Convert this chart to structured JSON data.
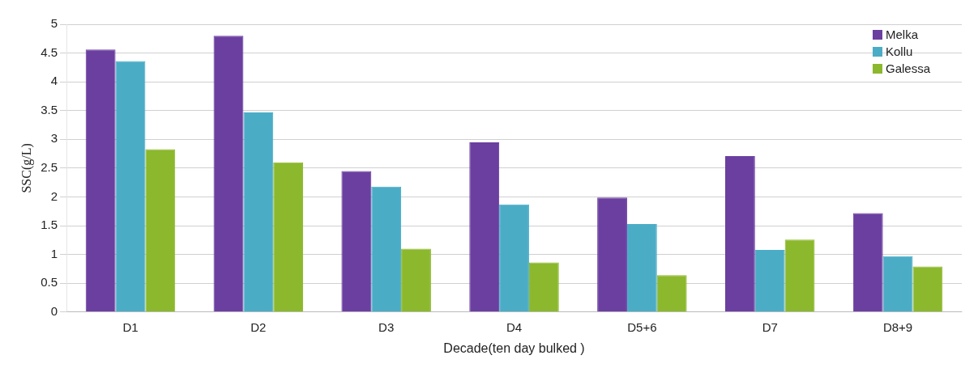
{
  "chart_data": {
    "type": "bar",
    "xlabel": "Decade(ten day bulked )",
    "ylabel": "SSC(g/L)",
    "categories": [
      "D1",
      "D2",
      "D3",
      "D4",
      "D5+6",
      "D7",
      "D8+9"
    ],
    "series": [
      {
        "name": "Melka",
        "color": "#6b3fa0",
        "values": [
          4.56,
          4.8,
          2.45,
          2.95,
          1.99,
          2.71,
          1.72
        ]
      },
      {
        "name": "Kollu",
        "color": "#4bacc6",
        "values": [
          4.36,
          3.47,
          2.18,
          1.87,
          1.53,
          1.08,
          0.97
        ]
      },
      {
        "name": "Galessa",
        "color": "#8cb82d",
        "values": [
          2.83,
          2.6,
          1.1,
          0.86,
          0.64,
          1.26,
          0.79
        ]
      }
    ],
    "ylim": [
      0,
      5
    ],
    "yticks": [
      0,
      0.5,
      1,
      1.5,
      2,
      2.5,
      3,
      3.5,
      4,
      4.5,
      5
    ],
    "grid": "y",
    "legend": "top right"
  }
}
